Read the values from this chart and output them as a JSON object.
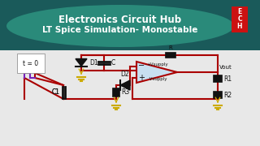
{
  "title_line1": "Electronics Circuit Hub",
  "title_line2": "LT Spice Simulation- Monostable",
  "bg_color": "#e8e8e8",
  "header_bg_dark": "#1a5a5a",
  "header_bg_mid": "#2a8a7a",
  "wire_color": "#aa0000",
  "ground_color": "#ccaa00",
  "component_color": "#111111",
  "opamp_fill": "#c8dff0",
  "pulse_color": "#7722bb",
  "logo_bg": "#cc1111",
  "logo_letters": [
    "E",
    "C",
    "H"
  ],
  "diode_fill": "#111111",
  "resistor_fill": "#111111"
}
